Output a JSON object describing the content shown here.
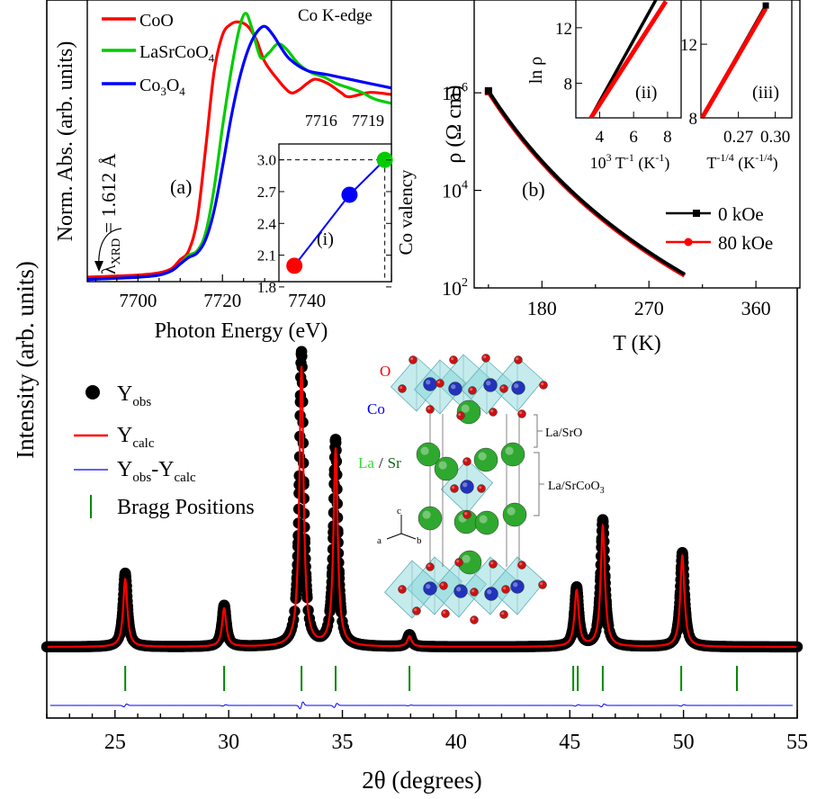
{
  "colors": {
    "black": "#000000",
    "red": "#ff0000",
    "green": "#00cc00",
    "blue": "#0000ff",
    "bragg": "#008800",
    "la_sr_sphere": "#2fa82f",
    "co_sphere": "#2233bb",
    "o_sphere": "#cc1111",
    "octahedron": "#7fd3d8"
  },
  "chart_data": [
    {
      "id": "main",
      "type": "line",
      "xlabel": "2θ (degrees)",
      "ylabel": "Intensity (arb. units)",
      "xlim": [
        22,
        55
      ],
      "x_ticks": [
        25,
        30,
        35,
        40,
        45,
        50,
        55
      ],
      "x_tick_labels": [
        "25",
        "30",
        "35",
        "40",
        "45",
        "50",
        "55"
      ],
      "ylim": [
        -0.12,
        1.0
      ],
      "background": 0.0,
      "peaks": [
        {
          "x": 25.45,
          "y_obs": 0.25,
          "y_calc": 0.23
        },
        {
          "x": 29.8,
          "y_obs": 0.14,
          "y_calc": 0.13
        },
        {
          "x": 33.2,
          "y_obs": 1.0,
          "y_calc": 0.95
        },
        {
          "x": 34.7,
          "y_obs": 0.7,
          "y_calc": 0.67
        },
        {
          "x": 37.95,
          "y_obs": 0.04,
          "y_calc": 0.035
        },
        {
          "x": 45.3,
          "y_obs": 0.2,
          "y_calc": 0.19
        },
        {
          "x": 46.45,
          "y_obs": 0.43,
          "y_calc": 0.41
        },
        {
          "x": 49.95,
          "y_obs": 0.32,
          "y_calc": 0.31
        }
      ],
      "bragg_positions": [
        25.45,
        29.8,
        33.2,
        34.7,
        37.95,
        45.15,
        45.35,
        46.45,
        49.9,
        52.35
      ],
      "legend": {
        "position": "left",
        "entries": [
          {
            "main": "Y",
            "sub": "obs",
            "rest": "",
            "style": "marker"
          },
          {
            "main": "Y",
            "sub": "calc",
            "rest": "",
            "style": "red-line"
          },
          {
            "main": "Y",
            "sub": "obs",
            "rest": "-Y",
            "sub2": "calc",
            "style": "blue-line"
          },
          {
            "main": "Bragg Positions",
            "sub": "",
            "rest": "",
            "style": "green-tick"
          }
        ]
      },
      "structure_labels": {
        "o": "O",
        "co": "Co",
        "la": "La",
        "slash": "/",
        "sr": "Sr",
        "layer_rock_salt": "La/SrO",
        "layer_perovskite_main": "La/SrCoO",
        "layer_perovskite_sub": "3",
        "axis_a": "a",
        "axis_b": "b",
        "axis_c": "c"
      }
    },
    {
      "id": "xanes",
      "type": "line",
      "panel_label": "(a)",
      "title": "Co K-edge",
      "xlabel": "Photon Energy (eV)",
      "ylabel": "Norm. Abs. (arb. units)",
      "xlim": [
        7688,
        7760
      ],
      "x_ticks": [
        7700,
        7720,
        7740
      ],
      "x_tick_labels": [
        "7700",
        "7720",
        "7740"
      ],
      "ylim": [
        0,
        1.28
      ],
      "annotation": {
        "main": "λ",
        "sub": "XRD",
        "rest": " = 1.612 Å"
      },
      "series": [
        {
          "name": "CoO",
          "color": "red",
          "x": [
            7688,
            7700,
            7705,
            7708,
            7710,
            7712,
            7714,
            7716,
            7718,
            7720,
            7722,
            7724,
            7726,
            7728,
            7730,
            7733,
            7736,
            7738,
            7740,
            7742,
            7745,
            7748,
            7750,
            7755,
            7760
          ],
          "y": [
            0.02,
            0.03,
            0.04,
            0.06,
            0.1,
            0.14,
            0.28,
            0.6,
            0.95,
            1.12,
            1.17,
            1.18,
            1.16,
            1.1,
            1.0,
            0.92,
            0.86,
            0.87,
            0.9,
            0.92,
            0.9,
            0.86,
            0.84,
            0.86,
            0.85
          ]
        },
        {
          "name": "LaSrCoO",
          "name_sub": "4",
          "color": "green",
          "x": [
            7688,
            7700,
            7705,
            7708,
            7710,
            7712,
            7714,
            7716,
            7718,
            7720,
            7722,
            7724,
            7725.5,
            7727,
            7729,
            7731,
            7733,
            7735,
            7738,
            7741,
            7744,
            7747,
            7750,
            7753,
            7756,
            7760
          ],
          "y": [
            0.01,
            0.02,
            0.03,
            0.05,
            0.08,
            0.12,
            0.14,
            0.22,
            0.42,
            0.7,
            0.95,
            1.15,
            1.22,
            1.15,
            1.02,
            1.04,
            1.08,
            1.06,
            0.99,
            0.95,
            0.93,
            0.9,
            0.88,
            0.86,
            0.83,
            0.81
          ]
        },
        {
          "name": "Co",
          "name_sub": "3",
          "name_rest": "O",
          "name_sub2": "4",
          "color": "blue",
          "x": [
            7688,
            7700,
            7705,
            7708,
            7710,
            7712,
            7714,
            7716,
            7718,
            7720,
            7722,
            7724,
            7726,
            7728,
            7730,
            7732,
            7734,
            7736,
            7740,
            7745,
            7750,
            7755,
            7760
          ],
          "y": [
            0.01,
            0.02,
            0.03,
            0.05,
            0.08,
            0.11,
            0.13,
            0.19,
            0.32,
            0.52,
            0.74,
            0.92,
            1.05,
            1.13,
            1.16,
            1.12,
            1.06,
            1.01,
            0.96,
            0.94,
            0.92,
            0.9,
            0.88
          ]
        }
      ]
    },
    {
      "id": "xanes-inset-top",
      "type": "line",
      "xlim": [
        7713.3,
        7720.5
      ],
      "x_ticks": [
        7716,
        7719
      ],
      "x_tick_labels": [
        "7716",
        "7719"
      ]
    },
    {
      "id": "xanes-inset-i",
      "type": "scatter",
      "panel_label": "(i)",
      "ylabel": "Co valency",
      "xlim": [
        7729.5,
        7755
      ],
      "ylim": [
        1.85,
        3.15
      ],
      "y_ticks": [
        1.8,
        2.1,
        2.4,
        2.7,
        3.0
      ],
      "y_tick_labels": [
        "1.8",
        "2.1",
        "2.4",
        "2.7",
        "3.0"
      ],
      "points": [
        {
          "x": 7733,
          "y": 2.0,
          "color": "red"
        },
        {
          "x": 7745.5,
          "y": 2.67,
          "color": "blue"
        },
        {
          "x": 7753.5,
          "y": 3.0,
          "color": "green"
        }
      ],
      "dashed_ref": {
        "x": 7753.5,
        "y": 3.0
      }
    },
    {
      "id": "resistivity",
      "type": "line",
      "panel_label": "(b)",
      "xlabel": "T (K)",
      "ylabel_main": "ρ (Ω cm)",
      "y_scale": "log",
      "xlim": [
        123,
        397
      ],
      "ylim": [
        100,
        80000000
      ],
      "x_ticks": [
        180,
        270,
        360
      ],
      "x_tick_labels": [
        "180",
        "270",
        "360"
      ],
      "y_ticks": [
        100,
        10000,
        1000000
      ],
      "y_tick_labels": [
        {
          "base": "10",
          "exp": "2"
        },
        {
          "base": "10",
          "exp": "4"
        },
        {
          "base": "10",
          "exp": "6"
        }
      ],
      "legend": {
        "position": "right",
        "entries": [
          "0 kOe",
          "80 kOe"
        ]
      },
      "series": [
        {
          "name": "0 kOe",
          "color": "black",
          "T_range": [
            135,
            300
          ],
          "rho_at_T": [
            [
              135,
              1100000
            ],
            [
              300,
              190
            ]
          ]
        },
        {
          "name": "80 kOe",
          "color": "red",
          "T_range": [
            135,
            300
          ],
          "rho_at_T": [
            [
              135,
              1050000
            ],
            [
              300,
              180
            ]
          ]
        }
      ]
    },
    {
      "id": "resistivity-inset-ii",
      "type": "line",
      "panel_label": "(ii)",
      "ylabel": "ln ρ",
      "xlabel_main": "10",
      "xlabel_exp": "3",
      "xlabel_rest": " T",
      "xlabel_exp2": "-1",
      "xlabel_unit": " (K",
      "xlabel_unit_exp": "-1",
      "xlabel_close": ")",
      "xlim": [
        2.6,
        8.8
      ],
      "ylim": [
        5.5,
        14.0
      ],
      "x_ticks": [
        4,
        6,
        8
      ],
      "x_tick_labels": [
        "4",
        "6",
        "8"
      ],
      "y_ticks": [
        8,
        12
      ],
      "y_tick_labels": [
        "8",
        "12"
      ],
      "series": [
        {
          "name": "0 kOe",
          "color": "black",
          "x": [
            3.33,
            7.4
          ],
          "y": [
            5.2,
            14.2
          ]
        },
        {
          "name": "80 kOe",
          "color": "red",
          "x": [
            3.33,
            7.9
          ],
          "y": [
            5.2,
            13.9
          ]
        }
      ]
    },
    {
      "id": "resistivity-inset-iii",
      "type": "line",
      "panel_label": "(iii)",
      "xlabel_main": "T",
      "xlabel_exp": "-1/4",
      "xlabel_unit": " (K",
      "xlabel_unit_exp": "-1/4",
      "xlabel_close": ")",
      "xlim": [
        0.2395,
        0.3135
      ],
      "ylim": [
        8,
        14.4
      ],
      "x_ticks": [
        0.27,
        0.3
      ],
      "x_tick_labels": [
        "0.27",
        "0.30"
      ],
      "y_ticks": [
        8,
        12
      ],
      "y_tick_labels": [
        "8",
        "12"
      ],
      "series": [
        {
          "name": "0 kOe",
          "color": "black",
          "x": [
            0.2404,
            0.2923
          ],
          "y": [
            8.0,
            14.1
          ]
        },
        {
          "name": "80 kOe",
          "color": "red",
          "x": [
            0.2404,
            0.2923
          ],
          "y": [
            8.0,
            13.95
          ]
        }
      ]
    }
  ]
}
